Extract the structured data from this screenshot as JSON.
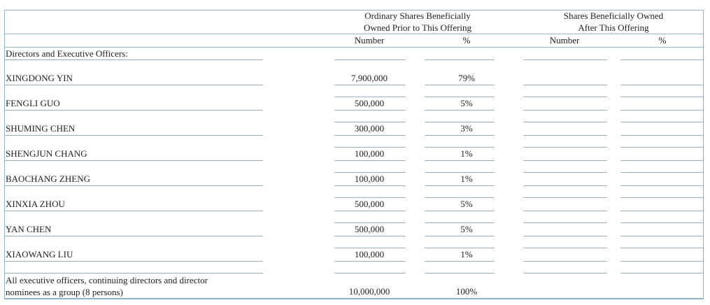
{
  "header": {
    "group_prior_line1": "Ordinary Shares Beneficially",
    "group_prior_line2": "Owned Prior to This Offering",
    "group_after_line1": "Shares Beneficially Owned",
    "group_after_line2": "After This Offering",
    "col_number": "Number",
    "col_percent": "%",
    "col_number_after": "Number",
    "col_percent_after": "%"
  },
  "section_label": "Directors and Executive Officers:",
  "rows": [
    {
      "name": "XINGDONG YIN",
      "number": "7,900,000",
      "percent": "79%"
    },
    {
      "name": "FENGLI GUO",
      "number": "500,000",
      "percent": "5%"
    },
    {
      "name": "SHUMING CHEN",
      "number": "300,000",
      "percent": "3%"
    },
    {
      "name": "SHENGJUN CHANG",
      "number": "100,000",
      "percent": "1%"
    },
    {
      "name": "BAOCHANG ZHENG",
      "number": "100,000",
      "percent": "1%"
    },
    {
      "name": "XINXIA ZHOU",
      "number": "500,000",
      "percent": "5%"
    },
    {
      "name": "YAN CHEN",
      "number": "500,000",
      "percent": "5%"
    },
    {
      "name": "XIAOWANG LIU",
      "number": "100,000",
      "percent": "1%"
    }
  ],
  "total": {
    "label_line1": "All executive officers, continuing directors and director",
    "label_line2": "nominees as a group (8 persons)",
    "number": "10,000,000",
    "percent": "100%"
  }
}
